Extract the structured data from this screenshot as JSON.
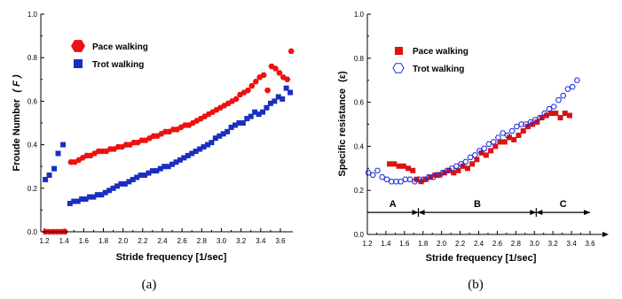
{
  "chart_data": [
    {
      "panel_label": "(a)",
      "type": "scatter",
      "title": "",
      "xlabel": "Stride frequency [1/sec]",
      "ylabel": "Froude Number",
      "ylabel_symbol": "( F )",
      "xlim": [
        1.2,
        3.76
      ],
      "ylim": [
        0,
        1.0
      ],
      "xticks": [
        "1.2",
        "1.4",
        "1.6",
        "1.8",
        "2.0",
        "2.2",
        "2.4",
        "2.6",
        "2.8",
        "3.0",
        "3.2",
        "3.4",
        "3.6"
      ],
      "yticks": [
        "0.0",
        "0.2",
        "0.4",
        "0.6",
        "0.8",
        "1.0"
      ],
      "legend_position": "upper-left",
      "series": [
        {
          "name": "Pace walking",
          "marker": "hexagon-filled",
          "color": "#ee1111",
          "points": [
            [
              1.21,
              0.0
            ],
            [
              1.25,
              0.0
            ],
            [
              1.29,
              0.0
            ],
            [
              1.33,
              0.0
            ],
            [
              1.37,
              0.0
            ],
            [
              1.41,
              0.0
            ],
            [
              1.47,
              0.32
            ],
            [
              1.51,
              0.32
            ],
            [
              1.55,
              0.33
            ],
            [
              1.59,
              0.34
            ],
            [
              1.63,
              0.35
            ],
            [
              1.67,
              0.35
            ],
            [
              1.71,
              0.36
            ],
            [
              1.75,
              0.37
            ],
            [
              1.79,
              0.37
            ],
            [
              1.83,
              0.37
            ],
            [
              1.87,
              0.38
            ],
            [
              1.91,
              0.38
            ],
            [
              1.95,
              0.39
            ],
            [
              1.99,
              0.39
            ],
            [
              2.03,
              0.4
            ],
            [
              2.07,
              0.4
            ],
            [
              2.11,
              0.41
            ],
            [
              2.15,
              0.41
            ],
            [
              2.19,
              0.42
            ],
            [
              2.23,
              0.42
            ],
            [
              2.27,
              0.43
            ],
            [
              2.31,
              0.44
            ],
            [
              2.35,
              0.44
            ],
            [
              2.39,
              0.45
            ],
            [
              2.43,
              0.46
            ],
            [
              2.47,
              0.46
            ],
            [
              2.51,
              0.47
            ],
            [
              2.55,
              0.47
            ],
            [
              2.59,
              0.48
            ],
            [
              2.63,
              0.49
            ],
            [
              2.67,
              0.49
            ],
            [
              2.71,
              0.5
            ],
            [
              2.75,
              0.51
            ],
            [
              2.79,
              0.52
            ],
            [
              2.83,
              0.53
            ],
            [
              2.87,
              0.54
            ],
            [
              2.91,
              0.55
            ],
            [
              2.95,
              0.56
            ],
            [
              2.99,
              0.57
            ],
            [
              3.03,
              0.58
            ],
            [
              3.07,
              0.59
            ],
            [
              3.11,
              0.6
            ],
            [
              3.15,
              0.61
            ],
            [
              3.19,
              0.63
            ],
            [
              3.23,
              0.64
            ],
            [
              3.27,
              0.65
            ],
            [
              3.31,
              0.67
            ],
            [
              3.35,
              0.69
            ],
            [
              3.39,
              0.71
            ],
            [
              3.43,
              0.72
            ],
            [
              3.47,
              0.65
            ],
            [
              3.51,
              0.76
            ],
            [
              3.55,
              0.75
            ],
            [
              3.59,
              0.73
            ],
            [
              3.63,
              0.71
            ],
            [
              3.67,
              0.7
            ],
            [
              3.71,
              0.83
            ]
          ]
        },
        {
          "name": "Trot walking",
          "marker": "square-filled",
          "color": "#1a2fbf",
          "points": [
            [
              1.21,
              0.24
            ],
            [
              1.25,
              0.26
            ],
            [
              1.3,
              0.29
            ],
            [
              1.34,
              0.36
            ],
            [
              1.39,
              0.4
            ],
            [
              1.46,
              0.13
            ],
            [
              1.5,
              0.14
            ],
            [
              1.54,
              0.14
            ],
            [
              1.58,
              0.15
            ],
            [
              1.62,
              0.15
            ],
            [
              1.66,
              0.16
            ],
            [
              1.7,
              0.16
            ],
            [
              1.74,
              0.17
            ],
            [
              1.78,
              0.17
            ],
            [
              1.82,
              0.18
            ],
            [
              1.86,
              0.19
            ],
            [
              1.9,
              0.2
            ],
            [
              1.94,
              0.21
            ],
            [
              1.98,
              0.22
            ],
            [
              2.02,
              0.22
            ],
            [
              2.06,
              0.23
            ],
            [
              2.1,
              0.24
            ],
            [
              2.14,
              0.25
            ],
            [
              2.18,
              0.26
            ],
            [
              2.22,
              0.26
            ],
            [
              2.26,
              0.27
            ],
            [
              2.3,
              0.28
            ],
            [
              2.34,
              0.28
            ],
            [
              2.38,
              0.29
            ],
            [
              2.42,
              0.3
            ],
            [
              2.46,
              0.3
            ],
            [
              2.5,
              0.31
            ],
            [
              2.54,
              0.32
            ],
            [
              2.58,
              0.33
            ],
            [
              2.62,
              0.34
            ],
            [
              2.66,
              0.35
            ],
            [
              2.7,
              0.36
            ],
            [
              2.74,
              0.37
            ],
            [
              2.78,
              0.38
            ],
            [
              2.82,
              0.39
            ],
            [
              2.86,
              0.4
            ],
            [
              2.9,
              0.41
            ],
            [
              2.94,
              0.43
            ],
            [
              2.98,
              0.44
            ],
            [
              3.02,
              0.45
            ],
            [
              3.06,
              0.46
            ],
            [
              3.1,
              0.48
            ],
            [
              3.14,
              0.49
            ],
            [
              3.18,
              0.5
            ],
            [
              3.22,
              0.5
            ],
            [
              3.26,
              0.52
            ],
            [
              3.3,
              0.53
            ],
            [
              3.34,
              0.55
            ],
            [
              3.38,
              0.54
            ],
            [
              3.42,
              0.55
            ],
            [
              3.46,
              0.57
            ],
            [
              3.5,
              0.59
            ],
            [
              3.54,
              0.6
            ],
            [
              3.58,
              0.62
            ],
            [
              3.62,
              0.61
            ],
            [
              3.66,
              0.66
            ],
            [
              3.7,
              0.64
            ]
          ]
        }
      ]
    },
    {
      "panel_label": "(b)",
      "type": "scatter",
      "title": "",
      "xlabel": "Stride frequency [1/sec]",
      "ylabel": "Specific resistance",
      "ylabel_symbol": "(ε)",
      "xlim": [
        1.2,
        3.64
      ],
      "ylim": [
        0,
        1.0
      ],
      "xticks": [
        "1.2",
        "1.4",
        "1.6",
        "1.8",
        "2.0",
        "2.2",
        "2.4",
        "2.6",
        "2.8",
        "3.0",
        "3.2",
        "3.4",
        "3.6"
      ],
      "yticks": [
        "0.0",
        "0.2",
        "0.4",
        "0.6",
        "0.8",
        "1.0"
      ],
      "legend_position": "upper-left",
      "regions": [
        {
          "label": "A",
          "from": 1.2,
          "to": 1.75,
          "y": 0.1
        },
        {
          "label": "B",
          "from": 1.75,
          "to": 3.02,
          "y": 0.1
        },
        {
          "label": "C",
          "from": 3.02,
          "to": 3.6,
          "y": 0.1
        }
      ],
      "series": [
        {
          "name": "Pace walking",
          "marker": "square-filled",
          "color": "#dd1111",
          "points": [
            [
              1.44,
              0.32
            ],
            [
              1.49,
              0.32
            ],
            [
              1.54,
              0.31
            ],
            [
              1.59,
              0.31
            ],
            [
              1.64,
              0.3
            ],
            [
              1.69,
              0.29
            ],
            [
              1.73,
              0.25
            ],
            [
              1.78,
              0.24
            ],
            [
              1.83,
              0.25
            ],
            [
              1.88,
              0.26
            ],
            [
              1.93,
              0.27
            ],
            [
              1.98,
              0.27
            ],
            [
              2.03,
              0.28
            ],
            [
              2.08,
              0.29
            ],
            [
              2.13,
              0.28
            ],
            [
              2.18,
              0.29
            ],
            [
              2.23,
              0.31
            ],
            [
              2.28,
              0.3
            ],
            [
              2.33,
              0.32
            ],
            [
              2.38,
              0.34
            ],
            [
              2.43,
              0.37
            ],
            [
              2.48,
              0.36
            ],
            [
              2.53,
              0.38
            ],
            [
              2.58,
              0.4
            ],
            [
              2.63,
              0.42
            ],
            [
              2.68,
              0.42
            ],
            [
              2.73,
              0.44
            ],
            [
              2.78,
              0.43
            ],
            [
              2.83,
              0.45
            ],
            [
              2.88,
              0.47
            ],
            [
              2.93,
              0.49
            ],
            [
              2.98,
              0.5
            ],
            [
              3.03,
              0.51
            ],
            [
              3.08,
              0.53
            ],
            [
              3.13,
              0.54
            ],
            [
              3.18,
              0.55
            ],
            [
              3.23,
              0.55
            ],
            [
              3.28,
              0.53
            ],
            [
              3.33,
              0.55
            ],
            [
              3.38,
              0.54
            ]
          ]
        },
        {
          "name": "Trot walking",
          "marker": "hexagon-open",
          "color": "#1a2fdf",
          "points": [
            [
              1.21,
              0.28
            ],
            [
              1.26,
              0.27
            ],
            [
              1.31,
              0.29
            ],
            [
              1.36,
              0.26
            ],
            [
              1.41,
              0.25
            ],
            [
              1.46,
              0.24
            ],
            [
              1.51,
              0.24
            ],
            [
              1.56,
              0.24
            ],
            [
              1.61,
              0.25
            ],
            [
              1.66,
              0.25
            ],
            [
              1.71,
              0.24
            ],
            [
              1.76,
              0.25
            ],
            [
              1.81,
              0.25
            ],
            [
              1.86,
              0.26
            ],
            [
              1.91,
              0.26
            ],
            [
              1.96,
              0.27
            ],
            [
              2.01,
              0.28
            ],
            [
              2.06,
              0.29
            ],
            [
              2.11,
              0.3
            ],
            [
              2.16,
              0.31
            ],
            [
              2.21,
              0.32
            ],
            [
              2.26,
              0.33
            ],
            [
              2.31,
              0.35
            ],
            [
              2.36,
              0.36
            ],
            [
              2.41,
              0.38
            ],
            [
              2.46,
              0.39
            ],
            [
              2.51,
              0.41
            ],
            [
              2.56,
              0.42
            ],
            [
              2.61,
              0.44
            ],
            [
              2.66,
              0.46
            ],
            [
              2.71,
              0.45
            ],
            [
              2.76,
              0.47
            ],
            [
              2.81,
              0.49
            ],
            [
              2.86,
              0.5
            ],
            [
              2.91,
              0.5
            ],
            [
              2.96,
              0.51
            ],
            [
              3.01,
              0.52
            ],
            [
              3.06,
              0.53
            ],
            [
              3.11,
              0.55
            ],
            [
              3.16,
              0.57
            ],
            [
              3.21,
              0.58
            ],
            [
              3.26,
              0.61
            ],
            [
              3.31,
              0.63
            ],
            [
              3.36,
              0.66
            ],
            [
              3.41,
              0.67
            ],
            [
              3.46,
              0.7
            ]
          ]
        }
      ]
    }
  ]
}
